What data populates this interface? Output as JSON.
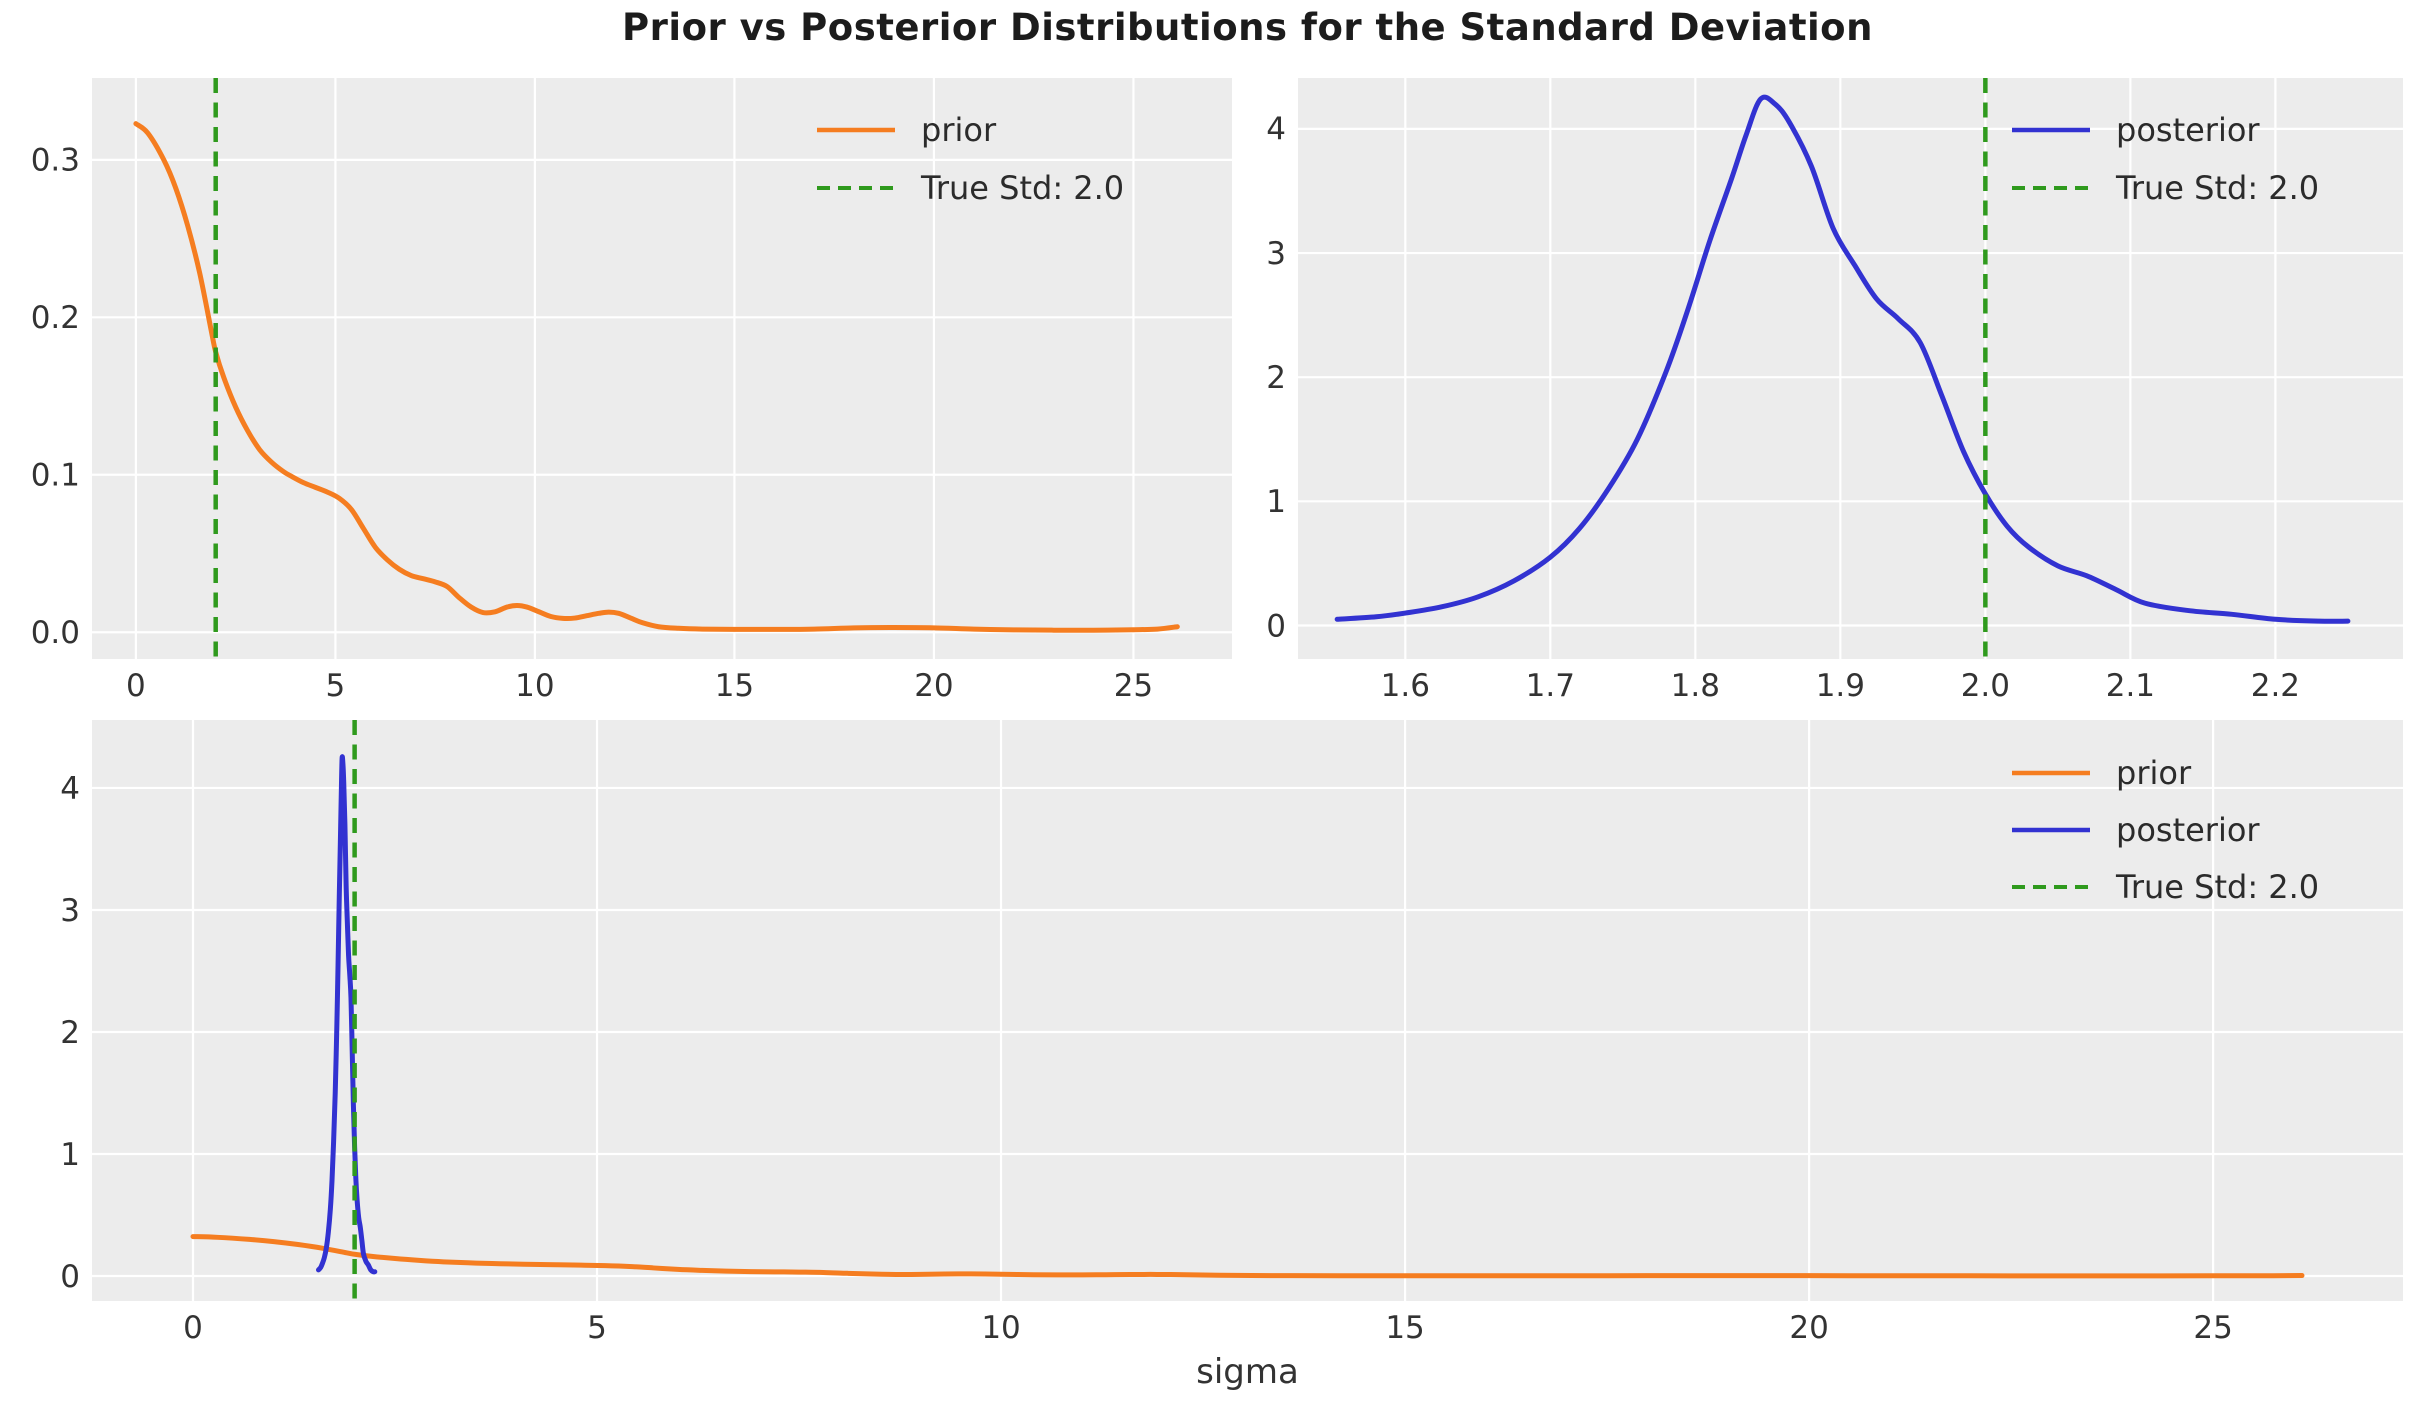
{
  "title": "Prior vs Posterior Distributions for the Standard Deviation",
  "xlabel": "sigma",
  "true_std": 2.0,
  "colors": {
    "figure_bg": "#ffffff",
    "axes_bg": "#ececec",
    "grid": "#ffffff",
    "tick_text": "#333333",
    "title_text": "#1c1c1c",
    "prior": "#f57d20",
    "posterior": "#3232d1",
    "true_std": "#2f9a1d"
  },
  "legend_entries": {
    "prior": {
      "label": "prior",
      "color": "#f57d20",
      "dash": false
    },
    "posterior": {
      "label": "posterior",
      "color": "#3232d1",
      "dash": false
    },
    "true_std": {
      "label": "True Std: 2.0",
      "color": "#2f9a1d",
      "dash": true
    }
  },
  "series_data": {
    "prior": [
      [
        0,
        0.323
      ],
      [
        0.3,
        0.317
      ],
      [
        0.7,
        0.3
      ],
      [
        1.0,
        0.282
      ],
      [
        1.3,
        0.258
      ],
      [
        1.6,
        0.228
      ],
      [
        1.9,
        0.19
      ],
      [
        2.0,
        0.178
      ],
      [
        2.2,
        0.162
      ],
      [
        2.5,
        0.143
      ],
      [
        2.8,
        0.128
      ],
      [
        3.1,
        0.116
      ],
      [
        3.4,
        0.108
      ],
      [
        3.7,
        0.102
      ],
      [
        3.9,
        0.099
      ],
      [
        4.2,
        0.095
      ],
      [
        4.5,
        0.092
      ],
      [
        4.8,
        0.089
      ],
      [
        5.1,
        0.085
      ],
      [
        5.4,
        0.078
      ],
      [
        5.7,
        0.066
      ],
      [
        6.0,
        0.054
      ],
      [
        6.3,
        0.046
      ],
      [
        6.6,
        0.04
      ],
      [
        6.9,
        0.036
      ],
      [
        7.2,
        0.034
      ],
      [
        7.5,
        0.032
      ],
      [
        7.8,
        0.029
      ],
      [
        8.1,
        0.022
      ],
      [
        8.4,
        0.016
      ],
      [
        8.7,
        0.0125
      ],
      [
        9.0,
        0.013
      ],
      [
        9.3,
        0.016
      ],
      [
        9.55,
        0.017
      ],
      [
        9.8,
        0.016
      ],
      [
        10.1,
        0.013
      ],
      [
        10.4,
        0.01
      ],
      [
        10.7,
        0.0088
      ],
      [
        11.0,
        0.009
      ],
      [
        11.3,
        0.0105
      ],
      [
        11.6,
        0.012
      ],
      [
        11.85,
        0.0128
      ],
      [
        12.1,
        0.012
      ],
      [
        12.4,
        0.009
      ],
      [
        12.7,
        0.006
      ],
      [
        13.1,
        0.0035
      ],
      [
        13.6,
        0.0025
      ],
      [
        14.2,
        0.002
      ],
      [
        15,
        0.0018
      ],
      [
        16,
        0.0018
      ],
      [
        17,
        0.002
      ],
      [
        18,
        0.0028
      ],
      [
        19,
        0.003
      ],
      [
        20,
        0.0028
      ],
      [
        21,
        0.002
      ],
      [
        22,
        0.0015
      ],
      [
        23,
        0.0013
      ],
      [
        24,
        0.0013
      ],
      [
        25,
        0.0016
      ],
      [
        25.6,
        0.002
      ],
      [
        26.1,
        0.0035
      ]
    ],
    "posterior": [
      [
        1.553,
        0.05
      ],
      [
        1.58,
        0.07
      ],
      [
        1.6,
        0.1
      ],
      [
        1.625,
        0.15
      ],
      [
        1.65,
        0.23
      ],
      [
        1.675,
        0.36
      ],
      [
        1.7,
        0.55
      ],
      [
        1.72,
        0.78
      ],
      [
        1.74,
        1.1
      ],
      [
        1.76,
        1.5
      ],
      [
        1.78,
        2.05
      ],
      [
        1.795,
        2.55
      ],
      [
        1.81,
        3.1
      ],
      [
        1.825,
        3.6
      ],
      [
        1.835,
        3.95
      ],
      [
        1.845,
        4.24
      ],
      [
        1.855,
        4.2
      ],
      [
        1.865,
        4.05
      ],
      [
        1.88,
        3.7
      ],
      [
        1.895,
        3.2
      ],
      [
        1.91,
        2.9
      ],
      [
        1.925,
        2.63
      ],
      [
        1.94,
        2.47
      ],
      [
        1.955,
        2.28
      ],
      [
        1.97,
        1.85
      ],
      [
        1.985,
        1.4
      ],
      [
        2.0,
        1.06
      ],
      [
        2.015,
        0.8
      ],
      [
        2.03,
        0.63
      ],
      [
        2.05,
        0.48
      ],
      [
        2.07,
        0.4
      ],
      [
        2.09,
        0.29
      ],
      [
        2.11,
        0.18
      ],
      [
        2.14,
        0.12
      ],
      [
        2.17,
        0.09
      ],
      [
        2.2,
        0.05
      ],
      [
        2.23,
        0.035
      ],
      [
        2.25,
        0.035
      ]
    ]
  },
  "chart_data": [
    {
      "id": "top_left",
      "type": "line",
      "series": [
        {
          "name": "prior"
        }
      ],
      "vline": {
        "x": 2.0,
        "entry": "true_std"
      },
      "xlim": [
        -1.1,
        27.47
      ],
      "ylim": [
        -0.017,
        0.352
      ],
      "xticks": {
        "values": [
          0,
          5,
          10,
          15,
          20,
          25
        ],
        "labels": [
          "0",
          "5",
          "10",
          "15",
          "20",
          "25"
        ]
      },
      "yticks": {
        "values": [
          0.0,
          0.1,
          0.2,
          0.3
        ],
        "labels": [
          "0.0",
          "0.1",
          "0.2",
          "0.3"
        ]
      },
      "legend": [
        "prior",
        "true_std"
      ],
      "legend_position": "upper right",
      "grid": true
    },
    {
      "id": "top_right",
      "type": "line",
      "series": [
        {
          "name": "posterior"
        }
      ],
      "vline": {
        "x": 2.0,
        "entry": "true_std"
      },
      "xlim": [
        1.526,
        2.288
      ],
      "ylim": [
        -0.27,
        4.41
      ],
      "xticks": {
        "values": [
          1.6,
          1.7,
          1.8,
          1.9,
          2.0,
          2.1,
          2.2
        ],
        "labels": [
          "1.6",
          "1.7",
          "1.8",
          "1.9",
          "2.0",
          "2.1",
          "2.2"
        ]
      },
      "yticks": {
        "values": [
          0,
          1,
          2,
          3,
          4
        ],
        "labels": [
          "0",
          "1",
          "2",
          "3",
          "4"
        ]
      },
      "legend": [
        "posterior",
        "true_std"
      ],
      "legend_position": "upper right",
      "grid": true
    },
    {
      "id": "bottom",
      "type": "line",
      "series": [
        {
          "name": "prior"
        },
        {
          "name": "posterior"
        }
      ],
      "vline": {
        "x": 2.0,
        "entry": "true_std"
      },
      "xlim": [
        -1.25,
        27.35
      ],
      "ylim": [
        -0.205,
        4.557
      ],
      "xticks": {
        "values": [
          0,
          5,
          10,
          15,
          20,
          25
        ],
        "labels": [
          "0",
          "5",
          "10",
          "15",
          "20",
          "25"
        ]
      },
      "yticks": {
        "values": [
          0,
          1,
          2,
          3,
          4
        ],
        "labels": [
          "0",
          "1",
          "2",
          "3",
          "4"
        ]
      },
      "legend": [
        "prior",
        "posterior",
        "true_std"
      ],
      "legend_position": "upper right",
      "xlabel": "sigma",
      "grid": true
    }
  ]
}
